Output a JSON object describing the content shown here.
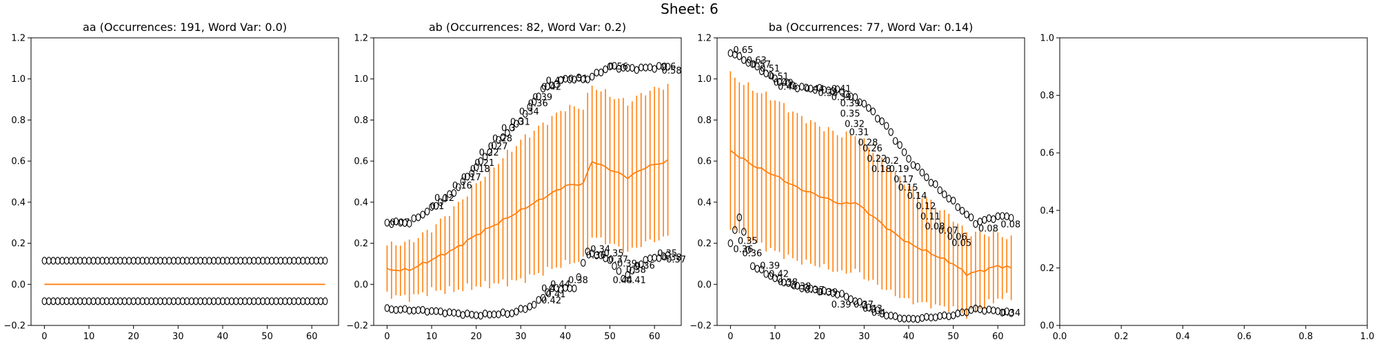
{
  "suptitle": "Sheet: 6",
  "colors": {
    "mean_line": "#ff7f0e",
    "markers": "#000000"
  },
  "chart_data": [
    {
      "type": "line",
      "title": "aa (Occurrences: 191, Word Var: 0.0)",
      "xlim": [
        -3,
        66
      ],
      "ylim": [
        -0.2,
        1.2
      ],
      "xticks": [
        "0",
        "10",
        "20",
        "30",
        "40",
        "50",
        "60"
      ],
      "yticks": [
        "−0.2",
        "0.0",
        "0.2",
        "0.4",
        "0.6",
        "0.8",
        "1.0",
        "1.2"
      ],
      "grid": false,
      "n_points": 64,
      "mean": {
        "from": 0.0,
        "to": 0.0,
        "shape": "flat"
      },
      "std_upper": 0.0,
      "markers_upper": 0.115,
      "markers_lower": -0.082,
      "marker_style": "open-circle",
      "value_labels": []
    },
    {
      "type": "line",
      "title": "ab (Occurrences: 82, Word Var: 0.2)",
      "xlim": [
        -3,
        66
      ],
      "ylim": [
        -0.2,
        1.2
      ],
      "xticks": [
        "0",
        "10",
        "20",
        "30",
        "40",
        "50",
        "60"
      ],
      "yticks": [
        "−0.2",
        "0.0",
        "0.2",
        "0.4",
        "0.6",
        "0.8",
        "1.0",
        "1.2"
      ],
      "grid": false,
      "n_points": 64,
      "mean_keypoints": [
        [
          0,
          0.07
        ],
        [
          5,
          0.07
        ],
        [
          10,
          0.12
        ],
        [
          15,
          0.17
        ],
        [
          20,
          0.24
        ],
        [
          25,
          0.3
        ],
        [
          30,
          0.36
        ],
        [
          35,
          0.42
        ],
        [
          40,
          0.48
        ],
        [
          44,
          0.49
        ],
        [
          46,
          0.6
        ],
        [
          50,
          0.56
        ],
        [
          54,
          0.52
        ],
        [
          58,
          0.57
        ],
        [
          63,
          0.6
        ]
      ],
      "std_keypoints": [
        [
          0,
          0.12
        ],
        [
          10,
          0.15
        ],
        [
          20,
          0.25
        ],
        [
          30,
          0.34
        ],
        [
          40,
          0.38
        ],
        [
          50,
          0.36
        ],
        [
          63,
          0.37
        ]
      ],
      "upper_markers_keypoints": [
        [
          0,
          0.3
        ],
        [
          5,
          0.3
        ],
        [
          10,
          0.37
        ],
        [
          15,
          0.45
        ],
        [
          20,
          0.57
        ],
        [
          25,
          0.7
        ],
        [
          30,
          0.8
        ],
        [
          35,
          0.95
        ],
        [
          40,
          1.0
        ],
        [
          45,
          1.0
        ],
        [
          50,
          1.06
        ],
        [
          55,
          1.05
        ],
        [
          63,
          1.06
        ]
      ],
      "lower_markers_keypoints": [
        [
          0,
          -0.12
        ],
        [
          10,
          -0.13
        ],
        [
          20,
          -0.15
        ],
        [
          28,
          -0.14
        ],
        [
          33,
          -0.1
        ],
        [
          37,
          -0.02
        ],
        [
          42,
          -0.02
        ],
        [
          45,
          0.16
        ],
        [
          50,
          0.12
        ],
        [
          53,
          0.03
        ],
        [
          58,
          0.12
        ],
        [
          63,
          0.14
        ]
      ],
      "value_labels": [
        {
          "x": 0,
          "y": 0.3,
          "text": "0.07"
        },
        {
          "x": 9,
          "y": 0.38,
          "text": "0.1"
        },
        {
          "x": 10,
          "y": 0.42,
          "text": "0.12"
        },
        {
          "x": 14,
          "y": 0.48,
          "text": "0.16"
        },
        {
          "x": 16,
          "y": 0.52,
          "text": "0.17"
        },
        {
          "x": 18,
          "y": 0.56,
          "text": "0.18"
        },
        {
          "x": 19,
          "y": 0.59,
          "text": "0.21"
        },
        {
          "x": 20,
          "y": 0.64,
          "text": "0.22"
        },
        {
          "x": 22,
          "y": 0.67,
          "text": "0.27"
        },
        {
          "x": 23,
          "y": 0.71,
          "text": "0.28"
        },
        {
          "x": 25,
          "y": 0.76,
          "text": "0.3"
        },
        {
          "x": 27,
          "y": 0.79,
          "text": "0.31"
        },
        {
          "x": 29,
          "y": 0.84,
          "text": "0.34"
        },
        {
          "x": 31,
          "y": 0.88,
          "text": "0.36"
        },
        {
          "x": 32,
          "y": 0.91,
          "text": "0.39"
        },
        {
          "x": 34,
          "y": 0.96,
          "text": "0.42"
        },
        {
          "x": 35,
          "y": 0.99,
          "text": "0.47"
        },
        {
          "x": 40,
          "y": 1.0,
          "text": "0.51"
        },
        {
          "x": 49,
          "y": 1.06,
          "text": "0.56"
        },
        {
          "x": 61,
          "y": 1.06,
          "text": "0.6"
        },
        {
          "x": 61,
          "y": 1.04,
          "text": "0.58"
        },
        {
          "x": 43,
          "y": 0.38,
          "text": ""
        },
        {
          "x": 40,
          "y": 0.02,
          "text": "0.38"
        },
        {
          "x": 34,
          "y": -0.02,
          "text": "0.4"
        },
        {
          "x": 35,
          "y": -0.05,
          "text": "0.41"
        },
        {
          "x": 34,
          "y": -0.08,
          "text": "0.42"
        },
        {
          "x": 36,
          "y": 0.0,
          "text": "0.44"
        },
        {
          "x": 45,
          "y": 0.17,
          "text": "0.34"
        },
        {
          "x": 44,
          "y": 0.14,
          "text": "0.36"
        },
        {
          "x": 48,
          "y": 0.15,
          "text": "0.35"
        },
        {
          "x": 49,
          "y": 0.12,
          "text": "0.37"
        },
        {
          "x": 51,
          "y": 0.1,
          "text": "0.39"
        },
        {
          "x": 53,
          "y": 0.07,
          "text": "0.38"
        },
        {
          "x": 55,
          "y": 0.09,
          "text": "0.36"
        },
        {
          "x": 60,
          "y": 0.15,
          "text": "0.35"
        },
        {
          "x": 61,
          "y": 0.13,
          "text": "0.38"
        },
        {
          "x": 62,
          "y": 0.12,
          "text": "0.37"
        },
        {
          "x": 53,
          "y": 0.02,
          "text": "0.41"
        },
        {
          "x": 50,
          "y": 0.02,
          "text": "0.44"
        }
      ]
    },
    {
      "type": "line",
      "title": "ba (Occurrences: 77, Word Var: 0.14)",
      "xlim": [
        -3,
        66
      ],
      "ylim": [
        -0.2,
        1.2
      ],
      "xticks": [
        "0",
        "10",
        "20",
        "30",
        "40",
        "50",
        "60"
      ],
      "yticks": [
        "−0.2",
        "0.0",
        "0.2",
        "0.4",
        "0.6",
        "0.8",
        "1.0",
        "1.2"
      ],
      "grid": false,
      "n_points": 64,
      "mean_keypoints": [
        [
          0,
          0.65
        ],
        [
          5,
          0.58
        ],
        [
          10,
          0.53
        ],
        [
          15,
          0.47
        ],
        [
          20,
          0.43
        ],
        [
          25,
          0.39
        ],
        [
          28,
          0.4
        ],
        [
          32,
          0.33
        ],
        [
          36,
          0.26
        ],
        [
          40,
          0.2
        ],
        [
          45,
          0.15
        ],
        [
          50,
          0.1
        ],
        [
          53,
          0.05
        ],
        [
          57,
          0.07
        ],
        [
          60,
          0.09
        ],
        [
          63,
          0.08
        ]
      ],
      "std_keypoints": [
        [
          0,
          0.37
        ],
        [
          10,
          0.37
        ],
        [
          20,
          0.34
        ],
        [
          30,
          0.33
        ],
        [
          40,
          0.28
        ],
        [
          50,
          0.22
        ],
        [
          63,
          0.14
        ]
      ],
      "upper_markers_keypoints": [
        [
          0,
          1.13
        ],
        [
          5,
          1.07
        ],
        [
          10,
          1.0
        ],
        [
          15,
          0.96
        ],
        [
          20,
          0.95
        ],
        [
          25,
          0.94
        ],
        [
          30,
          0.88
        ],
        [
          35,
          0.77
        ],
        [
          40,
          0.61
        ],
        [
          45,
          0.5
        ],
        [
          50,
          0.4
        ],
        [
          55,
          0.3
        ],
        [
          60,
          0.33
        ],
        [
          63,
          0.33
        ]
      ],
      "lower_markers_keypoints": [
        [
          0,
          0.2
        ],
        [
          2,
          0.33
        ],
        [
          5,
          0.09
        ],
        [
          10,
          0.03
        ],
        [
          15,
          -0.01
        ],
        [
          20,
          -0.03
        ],
        [
          25,
          -0.05
        ],
        [
          30,
          -0.1
        ],
        [
          35,
          -0.15
        ],
        [
          40,
          -0.17
        ],
        [
          50,
          -0.15
        ],
        [
          55,
          -0.12
        ],
        [
          60,
          -0.13
        ],
        [
          63,
          -0.14
        ]
      ],
      "value_labels": [
        {
          "x": 0,
          "y": 1.14,
          "text": "0.65"
        },
        {
          "x": 3,
          "y": 1.09,
          "text": "0.63"
        },
        {
          "x": 4,
          "y": 1.07,
          "text": "0.57"
        },
        {
          "x": 6,
          "y": 1.05,
          "text": "0.51"
        },
        {
          "x": 8,
          "y": 1.01,
          "text": "0.51"
        },
        {
          "x": 9,
          "y": 0.98,
          "text": "0.49"
        },
        {
          "x": 10,
          "y": 0.96,
          "text": "0.46"
        },
        {
          "x": 16,
          "y": 0.95,
          "text": "0.44"
        },
        {
          "x": 22,
          "y": 0.95,
          "text": "0.41"
        },
        {
          "x": 19,
          "y": 0.93,
          "text": "0.38"
        },
        {
          "x": 22,
          "y": 0.91,
          "text": "0.39"
        },
        {
          "x": 24,
          "y": 0.88,
          "text": "0.39"
        },
        {
          "x": 24,
          "y": 0.83,
          "text": "0.35"
        },
        {
          "x": 25,
          "y": 0.78,
          "text": "0.32"
        },
        {
          "x": 26,
          "y": 0.74,
          "text": "0.31"
        },
        {
          "x": 28,
          "y": 0.69,
          "text": "0.28"
        },
        {
          "x": 29,
          "y": 0.66,
          "text": "0.26"
        },
        {
          "x": 30,
          "y": 0.61,
          "text": "0.22"
        },
        {
          "x": 34,
          "y": 0.6,
          "text": "0.2"
        },
        {
          "x": 31,
          "y": 0.56,
          "text": "0.18"
        },
        {
          "x": 35,
          "y": 0.56,
          "text": "0.19"
        },
        {
          "x": 36,
          "y": 0.51,
          "text": "0.17"
        },
        {
          "x": 37,
          "y": 0.47,
          "text": "0.15"
        },
        {
          "x": 39,
          "y": 0.43,
          "text": "0.14"
        },
        {
          "x": 41,
          "y": 0.38,
          "text": "0.12"
        },
        {
          "x": 42,
          "y": 0.33,
          "text": "0.11"
        },
        {
          "x": 43,
          "y": 0.28,
          "text": "0.08"
        },
        {
          "x": 46,
          "y": 0.26,
          "text": "0.07"
        },
        {
          "x": 48,
          "y": 0.23,
          "text": "0.06"
        },
        {
          "x": 49,
          "y": 0.2,
          "text": "0.05"
        },
        {
          "x": 55,
          "y": 0.27,
          "text": "0.08"
        },
        {
          "x": 60,
          "y": 0.29,
          "text": "0.08"
        },
        {
          "x": 1,
          "y": 0.21,
          "text": "0.35"
        },
        {
          "x": 0,
          "y": 0.17,
          "text": "0.36"
        },
        {
          "x": 2,
          "y": 0.15,
          "text": "0.36"
        },
        {
          "x": 6,
          "y": 0.09,
          "text": "0.39"
        },
        {
          "x": 8,
          "y": 0.05,
          "text": "0.42"
        },
        {
          "x": 10,
          "y": 0.01,
          "text": "0.38"
        },
        {
          "x": 13,
          "y": -0.01,
          "text": "0.38"
        },
        {
          "x": 16,
          "y": -0.03,
          "text": "0.37"
        },
        {
          "x": 19,
          "y": -0.04,
          "text": "0.39"
        },
        {
          "x": 22,
          "y": -0.1,
          "text": "0.39"
        },
        {
          "x": 27,
          "y": -0.1,
          "text": "0.37"
        },
        {
          "x": 29,
          "y": -0.12,
          "text": "0.43"
        },
        {
          "x": 31,
          "y": -0.14,
          "text": "0.4"
        },
        {
          "x": 60,
          "y": -0.14,
          "text": "0.34"
        }
      ]
    },
    {
      "type": "line",
      "title": "",
      "xlim": [
        0,
        1
      ],
      "ylim": [
        0,
        1
      ],
      "xticks": [
        "0.0",
        "0.2",
        "0.4",
        "0.6",
        "0.8",
        "1.0"
      ],
      "yticks": [
        "0.0",
        "0.2",
        "0.4",
        "0.6",
        "0.8",
        "1.0"
      ],
      "grid": false,
      "empty": true
    }
  ]
}
